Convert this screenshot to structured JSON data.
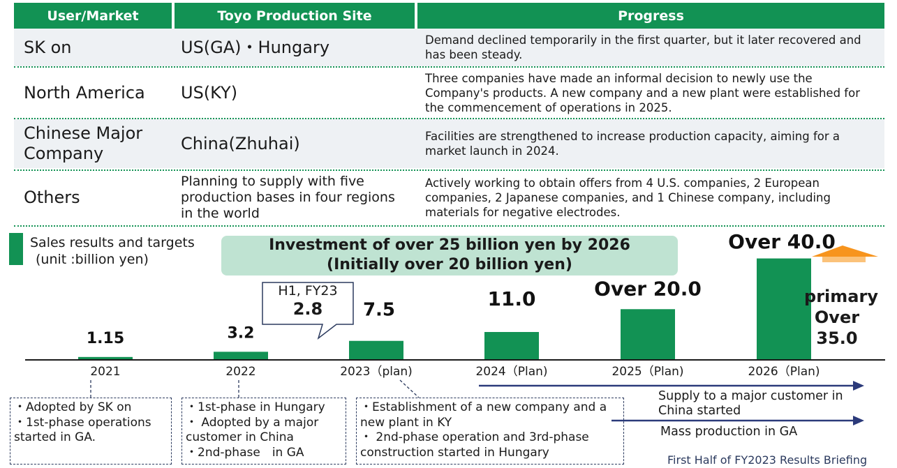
{
  "table": {
    "headers": [
      "User/Market",
      "Toyo Production Site",
      "Progress"
    ],
    "rows": [
      {
        "user": "SK on",
        "site": "US(GA)・Hungary",
        "progress": "Demand declined temporarily in the first quarter, but it later recovered and has been steady."
      },
      {
        "user": "North America",
        "site": "US(KY)",
        "progress": "Three companies have made an informal decision to newly use the Company's products. A new company and a new plant were established for the commencement of operations in 2025."
      },
      {
        "user": "Chinese Major Company",
        "site": "China(Zhuhai)",
        "progress": "Facilities are strengthened to increase production capacity, aiming for a market launch in 2024."
      },
      {
        "user": "Others",
        "site": "Planning to supply with five production bases in four regions in the world",
        "progress": "Actively working to obtain offers from 4 U.S. companies, 2 European companies, 2 Japanese companies, and 1 Chinese company, including materials for negative electrodes."
      }
    ]
  },
  "chart_data": {
    "type": "bar",
    "title": "Sales results and targets",
    "ylabel": "(unit :billion yen)",
    "categories": [
      "2021",
      "2022",
      "2023（plan)",
      "2024（Plan)",
      "2025（Plan)",
      "2026（Plan)"
    ],
    "values": [
      1.15,
      3.2,
      7.5,
      11.0,
      20.0,
      40.0
    ],
    "data_labels": [
      "1.15",
      "3.2",
      "7.5",
      "11.0",
      "Over 20.0",
      "Over 40.0"
    ],
    "ylim": [
      0,
      44
    ],
    "bar_color": "#129254",
    "annotations": {
      "banner_line1": "Investment of over 25 billion yen by 2026",
      "banner_line2": "(Initially over 20 billion yen)",
      "callout_line1": "H1, FY23",
      "callout_line2": "2.8",
      "primary_line1": "primary",
      "primary_line2": "Over 35.0"
    }
  },
  "notes": [
    [
      "・Adopted by SK on",
      "・1st-phase operations",
      "started in GA."
    ],
    [
      "・1st-phase in Hungary",
      "・ Adopted by a major",
      "customer in China",
      "・2nd-phase　in GA"
    ],
    [
      "・Establishment of a new company and a",
      "new plant in KY",
      "・ 2nd-phase operation and 3rd-phase",
      "construction started in Hungary"
    ]
  ],
  "arrows": {
    "label1": "Supply to a major customer in China started",
    "label2": "Mass production in GA"
  },
  "footer": "First Half of FY2023 Results Briefing",
  "colors": {
    "accent": "#129254",
    "banner": "#bfe3d2",
    "arrow": "#2b3a7a",
    "orange_arrow": "#f7941d"
  }
}
